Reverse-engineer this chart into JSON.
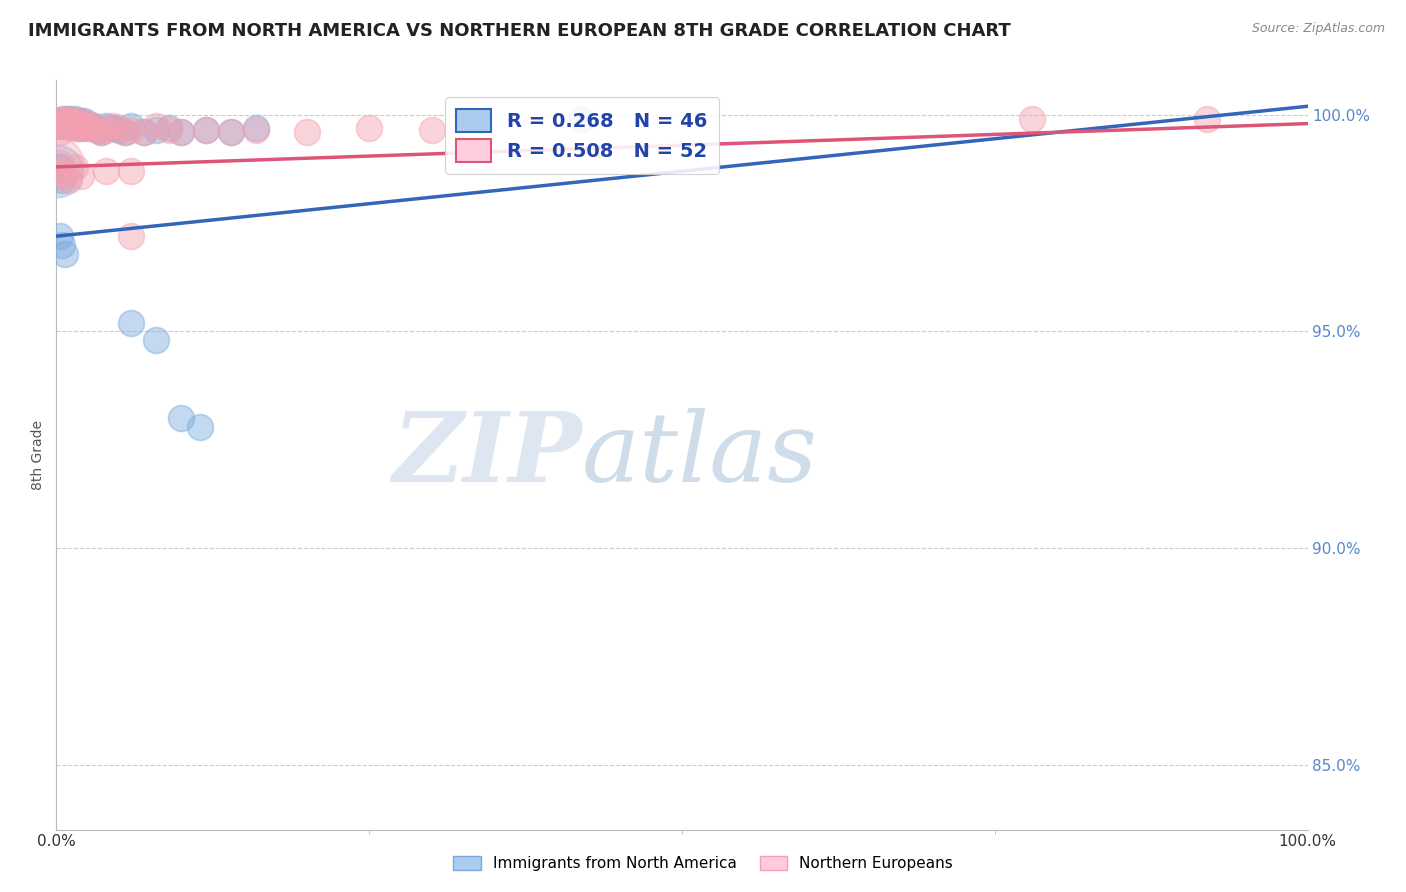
{
  "title": "IMMIGRANTS FROM NORTH AMERICA VS NORTHERN EUROPEAN 8TH GRADE CORRELATION CHART",
  "source": "Source: ZipAtlas.com",
  "ylabel": "8th Grade",
  "xlim": [
    0.0,
    1.0
  ],
  "ylim": [
    0.835,
    1.008
  ],
  "yticks": [
    0.85,
    0.9,
    0.95,
    1.0
  ],
  "ytick_labels": [
    "85.0%",
    "90.0%",
    "95.0%",
    "100.0%"
  ],
  "xtick_labels": [
    "0.0%",
    "100.0%"
  ],
  "legend_r_blue": "R = 0.268",
  "legend_n_blue": "N = 46",
  "legend_r_pink": "R = 0.508",
  "legend_n_pink": "N = 52",
  "blue_color": "#7aabdc",
  "pink_color": "#f4a0b0",
  "blue_line_color": "#3366bb",
  "pink_line_color": "#dd5577",
  "watermark_zip": "ZIP",
  "watermark_atlas": "atlas",
  "background_color": "#ffffff",
  "grid_color": "#cccccc",
  "title_fontsize": 13,
  "axis_fontsize": 10,
  "tick_fontsize": 11,
  "blue_scatter_x": [
    0.003,
    0.005,
    0.006,
    0.007,
    0.008,
    0.009,
    0.01,
    0.011,
    0.012,
    0.013,
    0.014,
    0.015,
    0.016,
    0.017,
    0.018,
    0.019,
    0.02,
    0.022,
    0.024,
    0.025,
    0.027,
    0.03,
    0.033,
    0.036,
    0.04,
    0.045,
    0.05,
    0.055,
    0.06,
    0.07,
    0.08,
    0.09,
    0.1,
    0.12,
    0.14,
    0.16,
    0.003,
    0.005,
    0.007,
    0.06,
    0.08,
    0.1,
    0.115,
    0.003,
    0.005,
    0.42
  ],
  "blue_scatter_y": [
    0.9975,
    0.9985,
    0.999,
    0.998,
    0.9975,
    0.9985,
    0.999,
    0.9975,
    0.998,
    0.9985,
    0.9975,
    0.999,
    0.998,
    0.9975,
    0.9985,
    0.997,
    0.9975,
    0.9985,
    0.9975,
    0.998,
    0.997,
    0.9975,
    0.9965,
    0.996,
    0.9975,
    0.997,
    0.9965,
    0.996,
    0.9975,
    0.996,
    0.9965,
    0.997,
    0.996,
    0.9965,
    0.996,
    0.997,
    0.972,
    0.97,
    0.968,
    0.952,
    0.948,
    0.93,
    0.928,
    0.988,
    0.985,
    0.999
  ],
  "pink_scatter_x": [
    0.003,
    0.004,
    0.005,
    0.006,
    0.007,
    0.008,
    0.009,
    0.01,
    0.011,
    0.012,
    0.013,
    0.014,
    0.015,
    0.016,
    0.017,
    0.018,
    0.019,
    0.02,
    0.022,
    0.024,
    0.025,
    0.027,
    0.03,
    0.033,
    0.036,
    0.04,
    0.045,
    0.05,
    0.055,
    0.06,
    0.07,
    0.08,
    0.09,
    0.1,
    0.12,
    0.14,
    0.16,
    0.2,
    0.25,
    0.3,
    0.003,
    0.005,
    0.007,
    0.01,
    0.015,
    0.02,
    0.06,
    0.78,
    0.92,
    0.003,
    0.04,
    0.06
  ],
  "pink_scatter_y": [
    0.9985,
    0.9975,
    0.999,
    0.998,
    0.9975,
    0.9985,
    0.999,
    0.9975,
    0.998,
    0.9985,
    0.997,
    0.998,
    0.9985,
    0.9975,
    0.997,
    0.998,
    0.9975,
    0.9985,
    0.997,
    0.9975,
    0.998,
    0.997,
    0.9975,
    0.9965,
    0.996,
    0.9965,
    0.9975,
    0.997,
    0.996,
    0.9965,
    0.996,
    0.9975,
    0.9965,
    0.996,
    0.9965,
    0.996,
    0.9965,
    0.996,
    0.997,
    0.9965,
    0.989,
    0.987,
    0.986,
    0.985,
    0.988,
    0.986,
    0.972,
    0.999,
    0.999,
    0.996,
    0.987,
    0.987
  ],
  "blue_line_x0": 0.0,
  "blue_line_y0": 0.972,
  "blue_line_x1": 1.0,
  "blue_line_y1": 1.002,
  "pink_line_x0": 0.0,
  "pink_line_y0": 0.988,
  "pink_line_x1": 1.0,
  "pink_line_y1": 0.998
}
